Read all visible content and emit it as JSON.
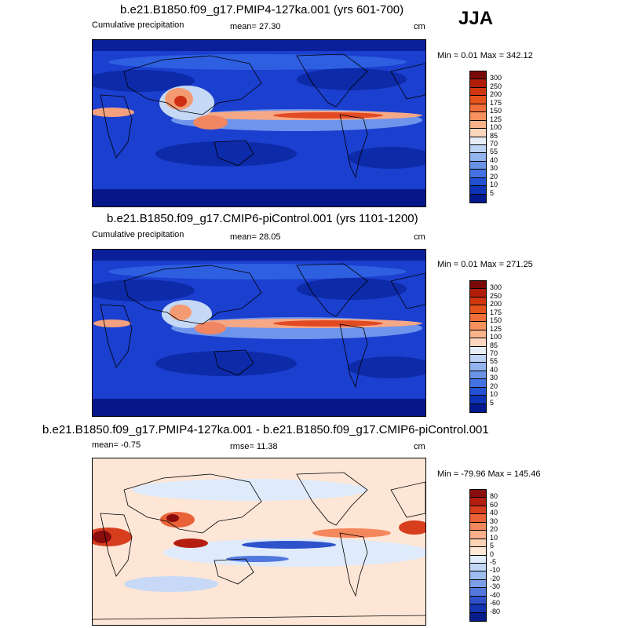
{
  "season": "JJA",
  "panels": [
    {
      "title": "b.e21.B1850.f09_g17.PMIP4-127ka.001 (yrs 601-700)",
      "left": "Cumulative precipitation",
      "mid": "mean=  27.30",
      "units": "cm",
      "minmax": "Min =   0.01 Max = 342.12",
      "colorbar": {
        "labels": [
          "300",
          "250",
          "200",
          "175",
          "150",
          "125",
          "100",
          "85",
          "70",
          "55",
          "40",
          "30",
          "20",
          "10",
          "5"
        ],
        "colors": [
          "#7a0a0a",
          "#b01e0a",
          "#d0360f",
          "#e5531c",
          "#f06f3a",
          "#f7925e",
          "#fab48b",
          "#fdd7bd",
          "#e7eef8",
          "#bed3f3",
          "#93b5ee",
          "#6a93e8",
          "#4472e2",
          "#2251d4",
          "#0d34b8",
          "#03198f"
        ]
      }
    },
    {
      "title": "b.e21.B1850.f09_g17.CMIP6-piControl.001 (yrs 1101-1200)",
      "left": "Cumulative precipitation",
      "mid": "mean=  28.05",
      "units": "cm",
      "minmax": "Min =   0.01 Max = 271.25",
      "colorbar": {
        "labels": [
          "300",
          "250",
          "200",
          "175",
          "150",
          "125",
          "100",
          "85",
          "70",
          "55",
          "40",
          "30",
          "20",
          "10",
          "5"
        ],
        "colors": [
          "#7a0a0a",
          "#b01e0a",
          "#d0360f",
          "#e5531c",
          "#f06f3a",
          "#f7925e",
          "#fab48b",
          "#fdd7bd",
          "#e7eef8",
          "#bed3f3",
          "#93b5ee",
          "#6a93e8",
          "#4472e2",
          "#2251d4",
          "#0d34b8",
          "#03198f"
        ]
      }
    },
    {
      "title": "b.e21.B1850.f09_g17.PMIP4-127ka.001 - b.e21.B1850.f09_g17.CMIP6-piControl.001",
      "left": "mean=  -0.75",
      "mid": "rmse=  11.38",
      "units": "cm",
      "minmax": "Min = -79.96 Max = 145.46",
      "colorbar": {
        "labels": [
          "80",
          "60",
          "40",
          "30",
          "20",
          "10",
          "5",
          "0",
          "-5",
          "-10",
          "-20",
          "-30",
          "-40",
          "-60",
          "-80"
        ],
        "colors": [
          "#8a0c0c",
          "#b31e10",
          "#d63e1e",
          "#ea6238",
          "#f5875c",
          "#fab08a",
          "#fdd3b8",
          "#fee8d8",
          "#e0ecfb",
          "#c2d6f6",
          "#9dbcef",
          "#7a9ee8",
          "#5278de",
          "#2f52cc",
          "#1534b2",
          "#081c8a"
        ]
      }
    }
  ]
}
